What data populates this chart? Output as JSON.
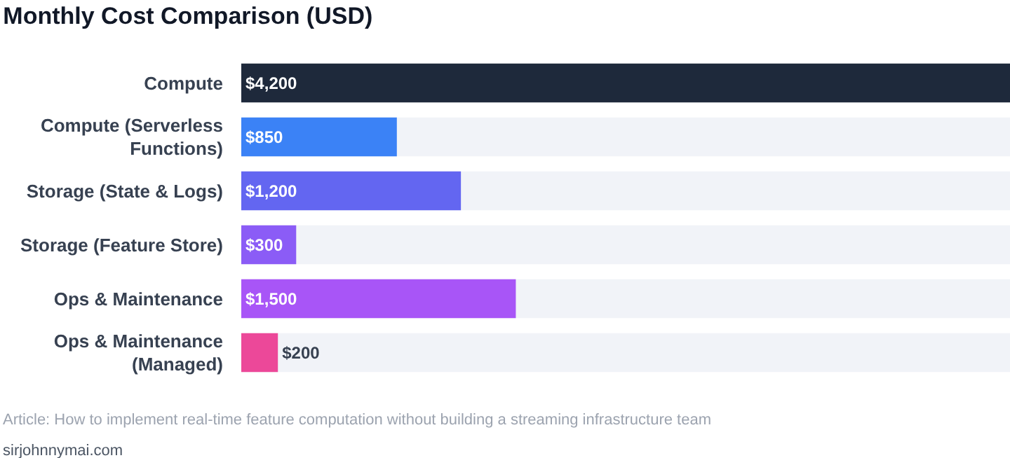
{
  "chart_data": {
    "type": "bar",
    "orientation": "horizontal",
    "title": "Monthly Cost Comparison (USD)",
    "categories": [
      "Compute",
      "Compute (Serverless Functions)",
      "Storage (State & Logs)",
      "Storage (Feature Store)",
      "Ops & Maintenance",
      "Ops & Maintenance (Managed)"
    ],
    "values": [
      4200,
      850,
      1200,
      300,
      1500,
      200
    ],
    "value_labels": [
      "$4,200",
      "$850",
      "$1,200",
      "$300",
      "$1,500",
      "$200"
    ],
    "colors": [
      "#1e293b",
      "#3b82f6",
      "#6366f1",
      "#8b5cf6",
      "#a855f7",
      "#ec4899"
    ],
    "grid": false,
    "annotations": [
      "Article: How to implement real-time feature computation without building a streaming infrastructure team",
      "sirjohnnymai.com"
    ]
  }
}
